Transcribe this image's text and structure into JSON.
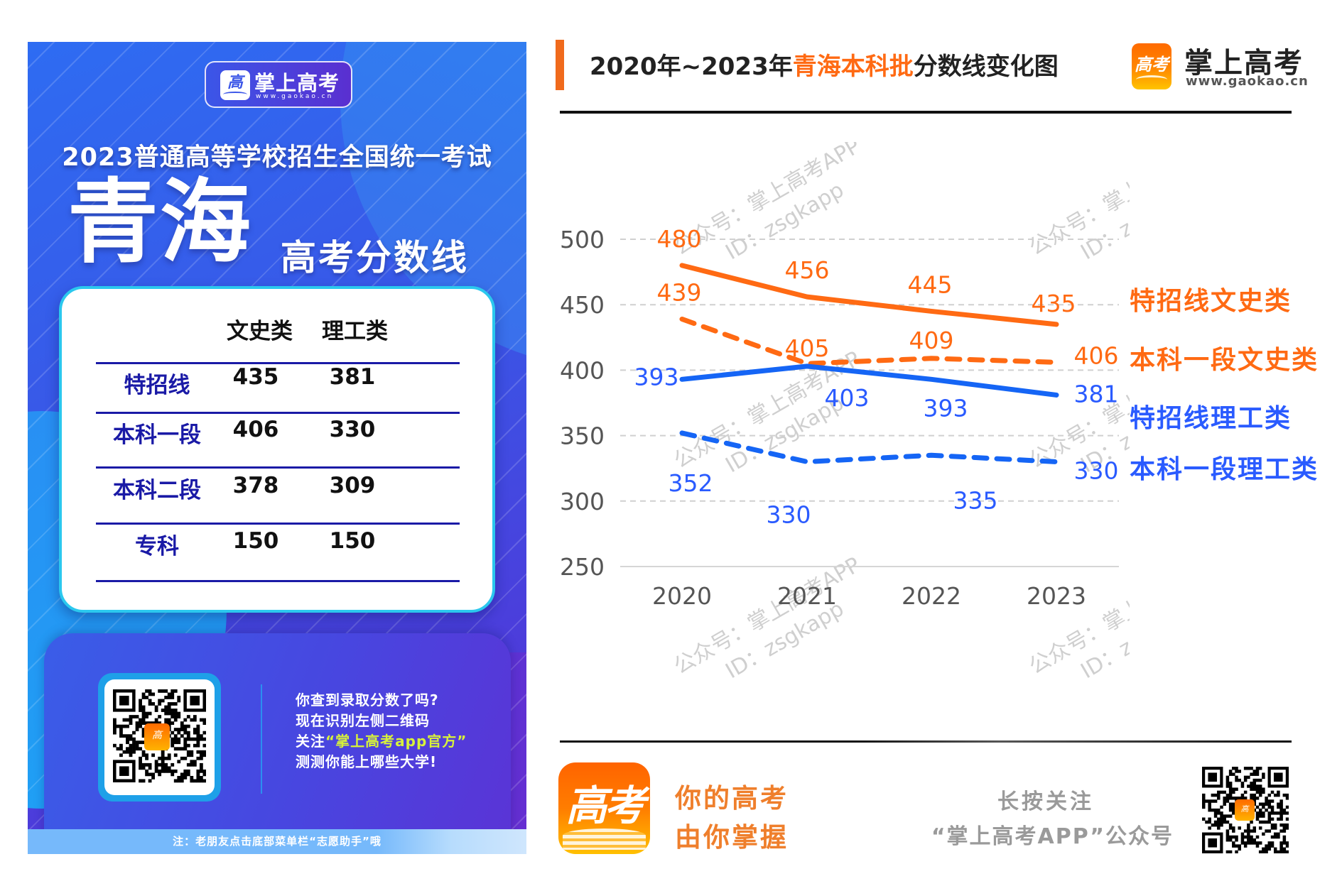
{
  "poster": {
    "brand_name": "掌上高考",
    "brand_url": "www.gaokao.cn",
    "brand_icon": "gaokao-book-icon",
    "exam_title": "2023普通高等学校招生全国统一考试",
    "province": "青海",
    "subtitle": "高考分数线",
    "table": {
      "headers": [
        "文史类",
        "理工类"
      ],
      "rows": [
        {
          "label": "特招线",
          "wenshi": "435",
          "ligong": "381"
        },
        {
          "label": "本科一段",
          "wenshi": "406",
          "ligong": "330"
        },
        {
          "label": "本科二段",
          "wenshi": "378",
          "ligong": "309"
        },
        {
          "label": "专科",
          "wenshi": "150",
          "ligong": "150"
        }
      ]
    },
    "qr_text": {
      "line1": "你查到录取分数了吗?",
      "line2": "现在识别左侧二维码",
      "line3_prefix": "关注",
      "line3_highlight": "“掌上高考app官方”",
      "line4": "测测你能上哪些大学!"
    },
    "qr_icon": "qr-code-icon",
    "note": "注：老朋友点击底部菜单栏“志愿助手”哦"
  },
  "chart_header": {
    "title_prefix": "2020年~2023年",
    "title_accent": "青海本科批",
    "title_suffix": "分数线变化图",
    "brand_name": "掌上高考",
    "brand_url": "www.gaokao.cn",
    "brand_icon": "gaokao-logo-icon"
  },
  "watermark": {
    "line1": "公众号：掌上高考APP",
    "line2": "ID：zsgkapp"
  },
  "colors": {
    "orange": "#ff6a13",
    "blue": "#1565f5",
    "blue_label": "#2a5bff",
    "grid": "#d0d0d0",
    "axis_text": "#555555"
  },
  "chart_data": {
    "type": "line",
    "title": "2020年~2023年青海本科批分数线变化图",
    "x": [
      "2020",
      "2021",
      "2022",
      "2023"
    ],
    "xlabel": "",
    "ylabel": "",
    "ylim": [
      250,
      500
    ],
    "yticks": [
      250,
      300,
      350,
      400,
      450,
      500
    ],
    "grid": true,
    "legend_position": "right",
    "series": [
      {
        "name": "特招线文史类",
        "color": "orange",
        "style": "solid",
        "values": [
          480,
          456,
          445,
          435
        ]
      },
      {
        "name": "本科一段文史类",
        "color": "orange",
        "style": "dashed",
        "values": [
          439,
          405,
          409,
          406
        ]
      },
      {
        "name": "特招线理工类",
        "color": "blue",
        "style": "solid",
        "values": [
          393,
          403,
          393,
          381
        ]
      },
      {
        "name": "本科一段理工类",
        "color": "blue",
        "style": "dashed",
        "values": [
          352,
          330,
          335,
          330
        ]
      }
    ]
  },
  "footer": {
    "slogan_line1": "你的高考",
    "slogan_line2": "由你掌握",
    "app_icon": "gaokao-app-icon",
    "follow_line1": "长按关注",
    "follow_line2": "“掌上高考APP”公众号",
    "qr_icon": "qr-code-icon"
  }
}
